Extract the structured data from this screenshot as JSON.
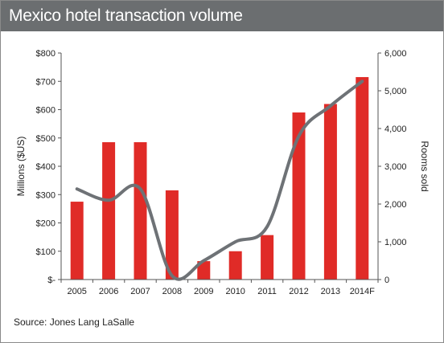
{
  "chart_data": {
    "type": "bar",
    "title": "Mexico hotel transaction volume",
    "source": "Source: Jones Lang LaSalle",
    "categories": [
      "2005",
      "2006",
      "2007",
      "2008",
      "2009",
      "2010",
      "2011",
      "2012",
      "2013",
      "2014F"
    ],
    "series": [
      {
        "type": "bar",
        "axis": "left",
        "color": "#e02b27",
        "values": [
          275,
          485,
          485,
          315,
          65,
          100,
          157,
          590,
          620,
          715
        ]
      },
      {
        "type": "line",
        "axis": "right",
        "color": "#6e7276",
        "smooth": true,
        "values": [
          2400,
          2100,
          2400,
          100,
          500,
          1000,
          1400,
          3800,
          4600,
          5250
        ]
      }
    ],
    "ylabel": "Millions ($US)",
    "y2label": "Rooms sold",
    "ylim": [
      0,
      800
    ],
    "y2lim": [
      0,
      6000
    ],
    "yticks": [
      "$-",
      "$100",
      "$200",
      "$300",
      "$400",
      "$500",
      "$600",
      "$700",
      "$800"
    ],
    "y2ticks": [
      "0",
      "1,000",
      "2,000",
      "3,000",
      "4,000",
      "5,000",
      "6,000"
    ],
    "grid": false,
    "legend": "none"
  }
}
